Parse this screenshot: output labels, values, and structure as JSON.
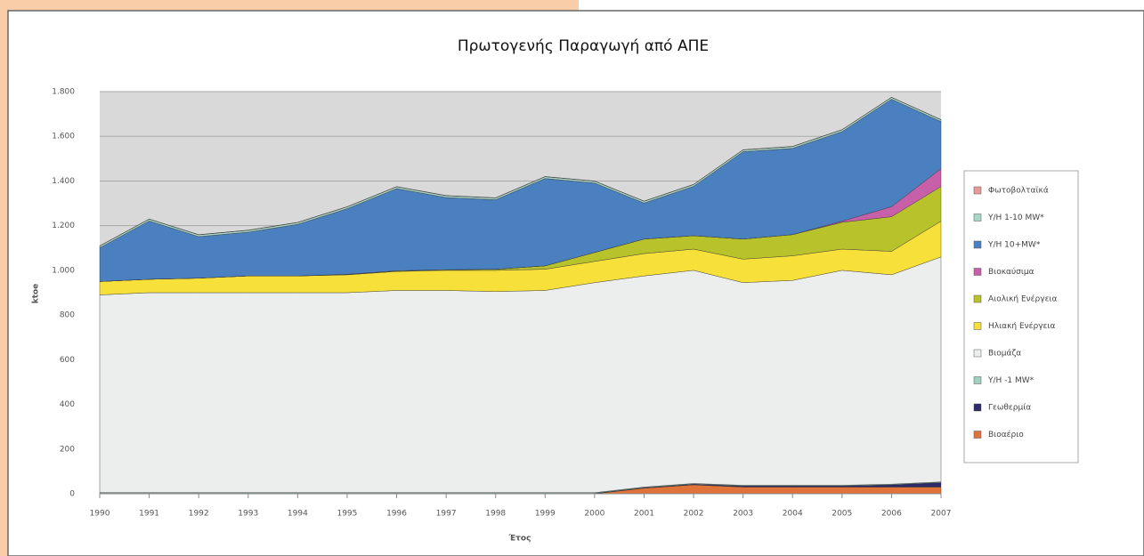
{
  "chart_data": {
    "type": "stacked_area",
    "title": "Πρωτογενής Παραγωγή από ΑΠΕ",
    "ylabel": "ktoe",
    "xlabel": "Έτος",
    "x": [
      1990,
      1991,
      1992,
      1993,
      1994,
      1995,
      1996,
      1997,
      1998,
      1999,
      2000,
      2001,
      2002,
      2003,
      2004,
      2005,
      2006,
      2007
    ],
    "xlim": [
      1990,
      2007
    ],
    "xticks": [
      1990,
      1991,
      1992,
      1993,
      1994,
      1995,
      1996,
      1997,
      1998,
      1999,
      2000,
      2001,
      2002,
      2003,
      2004,
      2005,
      2006,
      2007
    ],
    "ylim": [
      0,
      1800
    ],
    "yticks": [
      0,
      200,
      400,
      600,
      800,
      {
        "value": 1000,
        "label": "1.000"
      },
      {
        "value": 1200,
        "label": "1.200"
      },
      {
        "value": 1400,
        "label": "1.400"
      },
      {
        "value": 1600,
        "label": "1.600"
      },
      {
        "value": 1800,
        "label": "1.800"
      }
    ],
    "grid": true,
    "legend": "right",
    "series": [
      {
        "name": "Βιοαέριο",
        "color": "#e0733a",
        "values": [
          0,
          0,
          0,
          0,
          0,
          0,
          0,
          0,
          0,
          0,
          0,
          25,
          40,
          30,
          30,
          30,
          30,
          30
        ]
      },
      {
        "name": "Γεωθερμία",
        "color": "#2b2a6b",
        "values": [
          2,
          2,
          2,
          2,
          2,
          2,
          2,
          2,
          2,
          2,
          2,
          2,
          3,
          5,
          5,
          5,
          10,
          20
        ]
      },
      {
        "name": "Υ/Η -1 MW*",
        "color": "#9fd3c0",
        "values": [
          3,
          3,
          3,
          3,
          3,
          3,
          3,
          3,
          3,
          3,
          3,
          3,
          3,
          3,
          3,
          3,
          3,
          3
        ]
      },
      {
        "name": "Βιομάζα",
        "color": "#eceeee",
        "values": [
          885,
          895,
          895,
          895,
          895,
          895,
          905,
          905,
          900,
          905,
          940,
          945,
          954,
          907,
          917,
          962,
          937,
          1007
        ]
      },
      {
        "name": "Ηλιακή Ενέργεια",
        "color": "#f7e03a",
        "values": [
          60,
          60,
          65,
          75,
          75,
          80,
          85,
          90,
          95,
          95,
          95,
          100,
          95,
          105,
          110,
          95,
          105,
          160
        ]
      },
      {
        "name": "Αιολική Ενέργεια",
        "color": "#b8c22a",
        "values": [
          0,
          0,
          0,
          0,
          0,
          2,
          3,
          3,
          5,
          15,
          40,
          65,
          60,
          90,
          95,
          120,
          155,
          155
        ]
      },
      {
        "name": "Βιοκαύσιμα",
        "color": "#c760a8",
        "values": [
          0,
          0,
          0,
          0,
          0,
          0,
          0,
          0,
          0,
          0,
          0,
          0,
          0,
          0,
          0,
          5,
          45,
          80
        ]
      },
      {
        "name": "Υ/Η 10+MW*",
        "color": "#4a7fc0",
        "values": [
          151,
          261,
          186,
          196,
          231,
          294,
          368,
          323,
          311,
          391,
          311,
          161,
          221,
          391,
          386,
          401,
          481,
          211
        ]
      },
      {
        "name": "Υ/Η 1-10 MW*",
        "color": "#a8d6c8",
        "values": [
          8,
          8,
          8,
          8,
          8,
          8,
          8,
          8,
          8,
          8,
          8,
          8,
          8,
          8,
          8,
          8,
          8,
          8
        ]
      },
      {
        "name": "Φωτοβολταϊκά",
        "color": "#e89a9a",
        "values": [
          1,
          1,
          1,
          1,
          1,
          1,
          1,
          1,
          1,
          1,
          1,
          1,
          1,
          1,
          1,
          1,
          1,
          1
        ]
      }
    ]
  }
}
